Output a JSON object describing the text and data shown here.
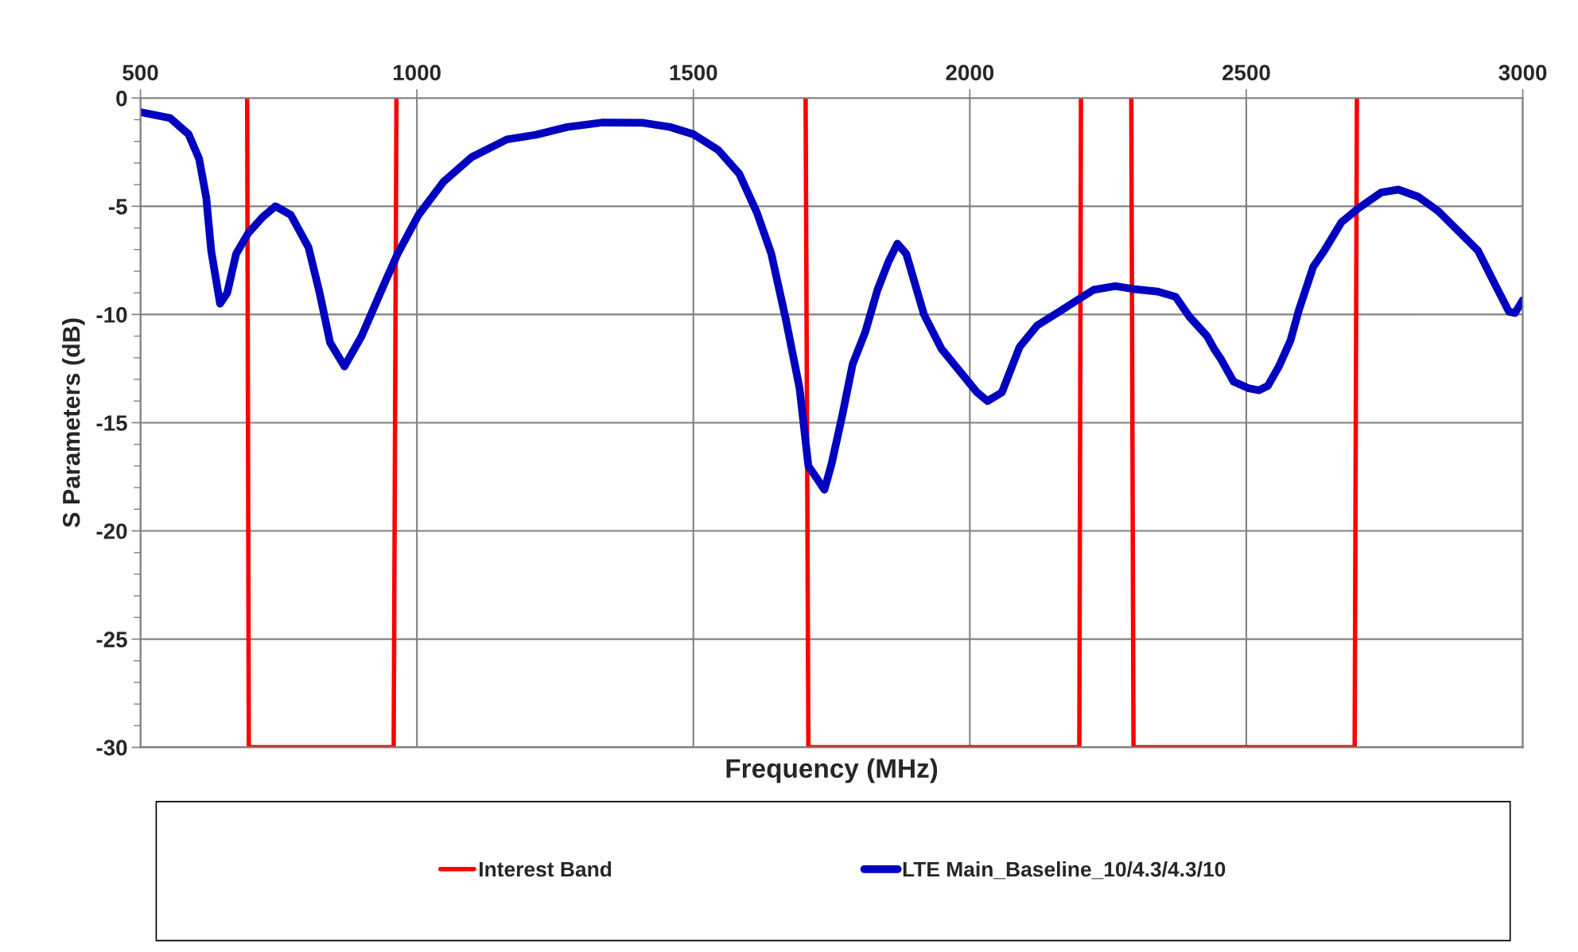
{
  "chart_data": {
    "type": "line",
    "xlabel": "Frequency (MHz)",
    "ylabel": "S Parameters (dB)",
    "xlim": [
      500,
      3000
    ],
    "xticks": [
      500,
      1000,
      1500,
      2000,
      2500,
      3000
    ],
    "ylim": [
      -30,
      0
    ],
    "yticks": [
      -30,
      {
        "value": -29,
        "label": null
      },
      {
        "value": -28,
        "label": null
      },
      {
        "value": -27,
        "label": null
      },
      {
        "value": -26,
        "label": null
      },
      -25,
      {
        "value": -24,
        "label": null
      },
      {
        "value": -23,
        "label": null
      },
      {
        "value": -22,
        "label": null
      },
      {
        "value": -21,
        "label": null
      },
      -20,
      {
        "value": -19,
        "label": null
      },
      {
        "value": -18,
        "label": null
      },
      {
        "value": -17,
        "label": null
      },
      {
        "value": -16,
        "label": null
      },
      -15,
      {
        "value": -14,
        "label": null
      },
      {
        "value": -13,
        "label": null
      },
      {
        "value": -12,
        "label": null
      },
      {
        "value": -11,
        "label": null
      },
      -10,
      {
        "value": -9,
        "label": null
      },
      {
        "value": -8,
        "label": null
      },
      {
        "value": -7,
        "label": null
      },
      {
        "value": -6,
        "label": null
      },
      -5,
      {
        "value": -4,
        "label": null
      },
      {
        "value": -3,
        "label": null
      },
      {
        "value": -2,
        "label": null
      },
      {
        "value": -1,
        "label": null
      },
      0
    ],
    "grid": true,
    "legend": "bottom",
    "series": [
      {
        "name": "Interest Band",
        "color": "#ff0000",
        "x": [
          693,
          696,
          958,
          963,
          1100,
          1703,
          1708,
          2198,
          2201,
          2250,
          2292,
          2296,
          2696,
          2700
        ],
        "values": [
          0,
          -30,
          -30,
          0,
          null,
          0,
          -30,
          -30,
          0,
          null,
          0,
          -30,
          -30,
          0
        ]
      },
      {
        "name": "LTE Main_Baseline_10/4.3/4.3/10",
        "color": "#0000c0",
        "x": [
          500,
          554,
          587,
          606,
          619,
          628,
          644,
          657,
          673,
          695,
          721,
          744,
          772,
          804,
          824,
          843,
          869,
          900,
          939,
          965,
          1003,
          1048,
          1099,
          1163,
          1215,
          1272,
          1336,
          1407,
          1458,
          1500,
          1545,
          1583,
          1615,
          1641,
          1667,
          1692,
          1708,
          1724,
          1737,
          1750,
          1769,
          1788,
          1811,
          1833,
          1853,
          1869,
          1885,
          1917,
          1949,
          1981,
          2013,
          2032,
          2058,
          2090,
          2122,
          2160,
          2199,
          2224,
          2263,
          2295,
          2340,
          2372,
          2397,
          2429,
          2442,
          2455,
          2477,
          2503,
          2523,
          2539,
          2559,
          2580,
          2595,
          2621,
          2641,
          2672,
          2703,
          2744,
          2775,
          2811,
          2847,
          2888,
          2919,
          2950,
          2975,
          2986,
          3000
        ],
        "values": [
          -0.65,
          -0.93,
          -1.67,
          -2.8,
          -4.6,
          -7.06,
          -9.5,
          -9.0,
          -7.2,
          -6.24,
          -5.5,
          -5.0,
          -5.4,
          -6.9,
          -9.0,
          -11.3,
          -12.4,
          -11.0,
          -8.7,
          -7.2,
          -5.4,
          -3.87,
          -2.73,
          -1.91,
          -1.7,
          -1.34,
          -1.13,
          -1.14,
          -1.34,
          -1.67,
          -2.4,
          -3.5,
          -5.3,
          -7.2,
          -10.2,
          -13.4,
          -17.0,
          -17.6,
          -18.1,
          -16.9,
          -14.7,
          -12.3,
          -10.8,
          -8.86,
          -7.55,
          -6.73,
          -7.2,
          -10.0,
          -11.6,
          -12.6,
          -13.6,
          -14.0,
          -13.6,
          -11.5,
          -10.5,
          -9.9,
          -9.26,
          -8.86,
          -8.69,
          -8.82,
          -8.94,
          -9.18,
          -10.1,
          -11.0,
          -11.6,
          -12.1,
          -13.1,
          -13.4,
          -13.5,
          -13.3,
          -12.4,
          -11.2,
          -9.8,
          -7.8,
          -7.05,
          -5.74,
          -5.09,
          -4.36,
          -4.23,
          -4.56,
          -5.22,
          -6.26,
          -7.05,
          -8.62,
          -9.87,
          -9.93,
          -9.34
        ]
      }
    ]
  }
}
